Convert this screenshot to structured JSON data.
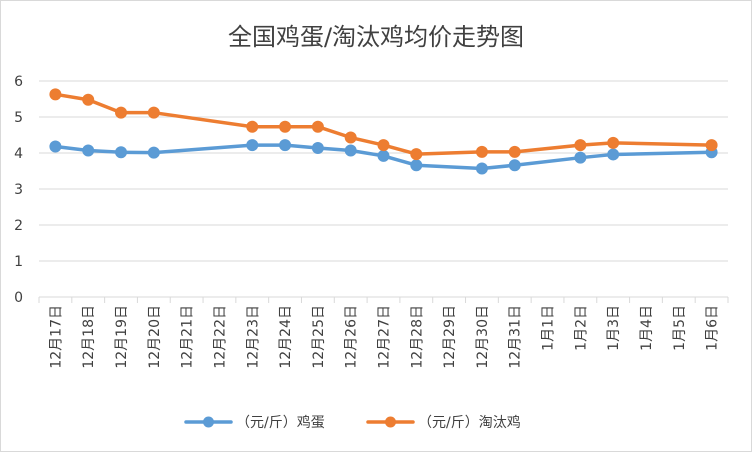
{
  "chart_data": {
    "type": "line",
    "title": "全国鸡蛋/淘汰鸡均价走势图",
    "categories": [
      "12月17日",
      "12月18日",
      "12月19日",
      "12月20日",
      "12月21日",
      "12月22日",
      "12月23日",
      "12月24日",
      "12月25日",
      "12月26日",
      "12月27日",
      "12月28日",
      "12月29日",
      "12月30日",
      "12月31日",
      "1月1日",
      "1月2日",
      "1月3日",
      "1月4日",
      "1月5日",
      "1月6日"
    ],
    "series": [
      {
        "name": "（元/斤）鸡蛋",
        "color": "#5B9BD5",
        "values": [
          4.18,
          4.07,
          4.02,
          4.01,
          null,
          null,
          4.22,
          4.22,
          4.14,
          4.07,
          3.92,
          3.66,
          null,
          3.57,
          3.66,
          null,
          3.87,
          3.96,
          null,
          null,
          4.02
        ]
      },
      {
        "name": "（元/斤）淘汰鸡",
        "color": "#ED7D31",
        "values": [
          5.63,
          5.48,
          5.12,
          5.12,
          null,
          null,
          4.73,
          4.73,
          4.73,
          4.43,
          4.22,
          3.97,
          null,
          4.03,
          4.03,
          null,
          4.22,
          4.28,
          null,
          null,
          4.22
        ]
      }
    ],
    "y_ticks": [
      "0",
      "1",
      "2",
      "3",
      "4",
      "5",
      "6"
    ],
    "ylim": [
      0,
      6
    ],
    "grid": true,
    "legend": "bottom"
  }
}
